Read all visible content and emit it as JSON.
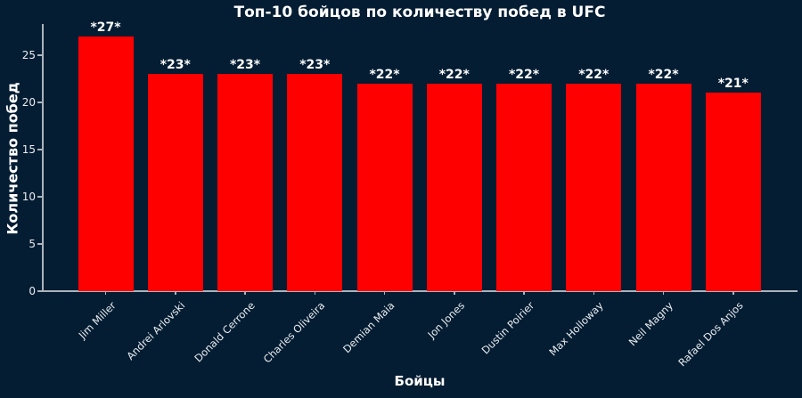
{
  "chart_data": {
    "type": "bar",
    "title": "Топ-10 бойцов по количеству побед в UFC",
    "xlabel": "Бойцы",
    "ylabel": "Количество побед",
    "categories": [
      "Jim Miller",
      "Andrei Arlovski",
      "Donald Cerrone",
      "Charles Oliveira",
      "Demian Maia",
      "Jon Jones",
      "Dustin Poirier",
      "Max Holloway",
      "Neil Magny",
      "Rafael Dos Anjos"
    ],
    "values": [
      27,
      23,
      23,
      23,
      22,
      22,
      22,
      22,
      22,
      21
    ],
    "bar_labels": [
      "*27*",
      "*23*",
      "*23*",
      "*23*",
      "*22*",
      "*22*",
      "*22*",
      "*22*",
      "*22*",
      "*21*"
    ],
    "yticks": [
      0,
      5,
      10,
      15,
      20,
      25
    ],
    "ylim": [
      0,
      28.3
    ],
    "legend": null,
    "grid": false,
    "colors": {
      "background": "#041d33",
      "bar": "#ff0000",
      "title_text": "#ffffff",
      "axis_label_text": "#ffffff",
      "tick_label_text": "#e9edf0",
      "bar_value_text": "#ffffff",
      "axis_line": "#aab4bd"
    }
  }
}
